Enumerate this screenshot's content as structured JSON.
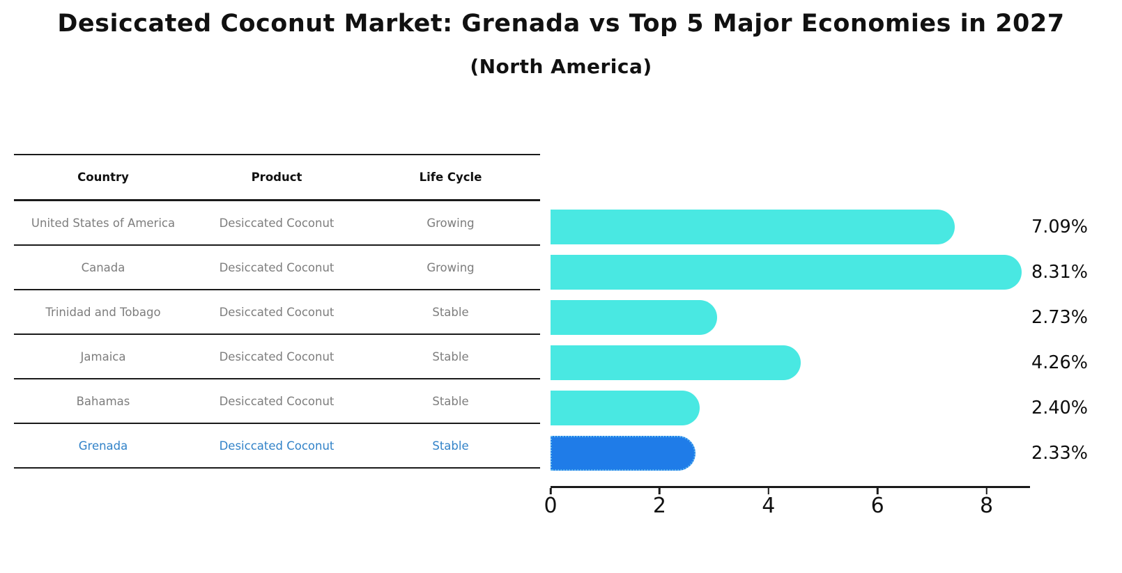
{
  "title": "Desiccated Coconut Market: Grenada vs Top 5 Major Economies in 2027",
  "subtitle": "(North America)",
  "table": {
    "headers": [
      "Country",
      "Product",
      "Life Cycle"
    ],
    "rows": [
      {
        "country": "United States of America",
        "product": "Desiccated Coconut",
        "life_cycle": "Growing"
      },
      {
        "country": "Canada",
        "product": "Desiccated Coconut",
        "life_cycle": "Growing"
      },
      {
        "country": "Trinidad and Tobago",
        "product": "Desiccated Coconut",
        "life_cycle": "Stable"
      },
      {
        "country": "Jamaica",
        "product": "Desiccated Coconut",
        "life_cycle": "Stable"
      },
      {
        "country": "Bahamas",
        "product": "Desiccated Coconut",
        "life_cycle": "Stable"
      },
      {
        "country": "Grenada",
        "product": "Desiccated Coconut",
        "life_cycle": "Stable"
      }
    ],
    "highlight_row": 5
  },
  "chart_data": {
    "type": "bar",
    "orientation": "horizontal",
    "title": "Desiccated Coconut Market: Grenada vs Top 5 Major Economies in 2027",
    "subtitle": "(North America)",
    "categories": [
      "United States of America",
      "Canada",
      "Trinidad and Tobago",
      "Jamaica",
      "Bahamas",
      "Grenada"
    ],
    "values": [
      7.09,
      8.31,
      2.73,
      4.26,
      2.4,
      2.33
    ],
    "value_labels": [
      "7.09%",
      "8.31%",
      "2.73%",
      "4.26%",
      "2.40%",
      "2.33%"
    ],
    "x_ticks": [
      "0",
      "2",
      "4",
      "6",
      "8"
    ],
    "xlim": [
      0,
      8.8
    ],
    "grid": false,
    "legend": false,
    "highlight_index": 5
  },
  "colors": {
    "bar": "#49e8e2",
    "highlight_bar": "#1f7ce8",
    "highlight_bar_border": "#5fb8f0",
    "highlight_text": "#3182c8",
    "table_text": "#7d7d7d",
    "heading_text": "#111111",
    "axis": "#1a1a1a"
  }
}
